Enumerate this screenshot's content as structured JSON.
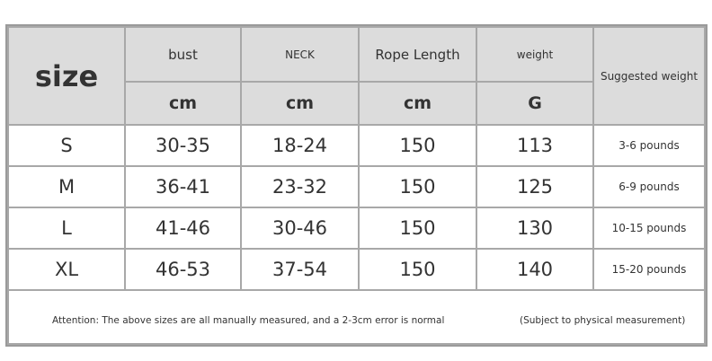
{
  "header": {
    "size": "size",
    "columns": [
      {
        "label": "bust",
        "unit": "cm"
      },
      {
        "label": "NECK",
        "unit": "cm"
      },
      {
        "label": "Rope Length",
        "unit": "cm"
      },
      {
        "label": "weight",
        "unit": "G"
      }
    ],
    "suggested": "Suggested weight"
  },
  "rows": [
    {
      "size": "S",
      "bust": "30-35",
      "neck": "18-24",
      "rope": "150",
      "weight": "113",
      "suggested": "3-6 pounds"
    },
    {
      "size": "M",
      "bust": "36-41",
      "neck": "23-32",
      "rope": "150",
      "weight": "125",
      "suggested": "6-9 pounds"
    },
    {
      "size": "L",
      "bust": "41-46",
      "neck": "30-46",
      "rope": "150",
      "weight": "130",
      "suggested": "10-15 pounds"
    },
    {
      "size": "XL",
      "bust": "46-53",
      "neck": "37-54",
      "rope": "150",
      "weight": "140",
      "suggested": "15-20 pounds"
    }
  ],
  "footer": {
    "attention": "Attention: The above sizes are all manually measured, and a 2-3cm error is normal",
    "note": "(Subject to physical measurement)"
  }
}
